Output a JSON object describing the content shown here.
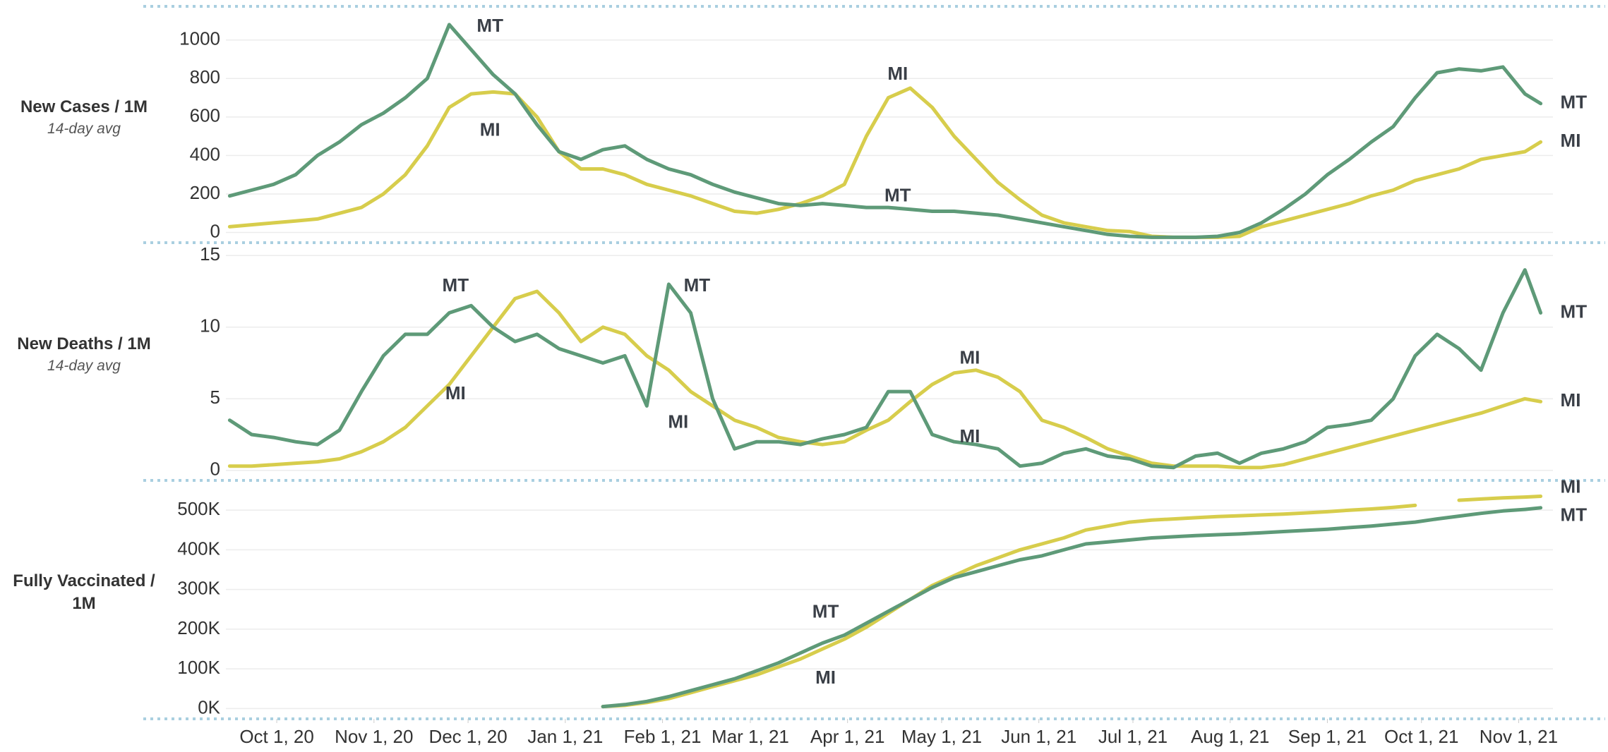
{
  "chart_data": [
    {
      "type": "line",
      "y_label": "New Cases / 1M",
      "y_sublabel": "14-day avg",
      "x": [
        "2020-09-16",
        "2020-09-23",
        "2020-09-30",
        "2020-10-07",
        "2020-10-14",
        "2020-10-21",
        "2020-10-28",
        "2020-11-04",
        "2020-11-11",
        "2020-11-18",
        "2020-11-25",
        "2020-12-02",
        "2020-12-09",
        "2020-12-16",
        "2020-12-23",
        "2020-12-30",
        "2021-01-06",
        "2021-01-13",
        "2021-01-20",
        "2021-01-27",
        "2021-02-03",
        "2021-02-10",
        "2021-02-17",
        "2021-02-24",
        "2021-03-03",
        "2021-03-10",
        "2021-03-17",
        "2021-03-24",
        "2021-03-31",
        "2021-04-07",
        "2021-04-14",
        "2021-04-21",
        "2021-04-28",
        "2021-05-05",
        "2021-05-12",
        "2021-05-19",
        "2021-05-26",
        "2021-06-02",
        "2021-06-09",
        "2021-06-16",
        "2021-06-23",
        "2021-06-30",
        "2021-07-07",
        "2021-07-14",
        "2021-07-21",
        "2021-07-28",
        "2021-08-04",
        "2021-08-11",
        "2021-08-18",
        "2021-08-25",
        "2021-09-01",
        "2021-09-08",
        "2021-09-15",
        "2021-09-22",
        "2021-09-29",
        "2021-10-06",
        "2021-10-13",
        "2021-10-20",
        "2021-10-27",
        "2021-11-03",
        "2021-11-08"
      ],
      "series": [
        {
          "name": "MI",
          "color": "#d7cd4c",
          "values": [
            30,
            40,
            50,
            60,
            70,
            100,
            130,
            200,
            300,
            450,
            650,
            720,
            730,
            720,
            600,
            420,
            330,
            330,
            300,
            250,
            220,
            190,
            150,
            110,
            100,
            120,
            150,
            190,
            250,
            500,
            700,
            750,
            650,
            500,
            380,
            260,
            170,
            90,
            50,
            30,
            10,
            5,
            -20,
            -25,
            -25,
            -25,
            -20,
            30,
            60,
            90,
            120,
            150,
            190,
            220,
            270,
            300,
            330,
            380,
            400,
            420,
            470
          ]
        },
        {
          "name": "MT",
          "color": "#5e9a78",
          "values": [
            190,
            220,
            250,
            300,
            400,
            470,
            560,
            620,
            700,
            800,
            1080,
            950,
            820,
            720,
            560,
            420,
            380,
            430,
            450,
            380,
            330,
            300,
            250,
            210,
            180,
            150,
            140,
            150,
            140,
            130,
            130,
            120,
            110,
            110,
            100,
            90,
            70,
            50,
            30,
            10,
            -10,
            -20,
            -25,
            -25,
            -25,
            -20,
            0,
            50,
            120,
            200,
            300,
            380,
            470,
            550,
            700,
            830,
            850,
            840,
            860,
            720,
            670
          ]
        }
      ],
      "xlim": [
        "2020-09-15",
        "2021-11-09"
      ],
      "ylim": [
        -53,
        1175
      ],
      "yticks": [
        0,
        200,
        400,
        600,
        800,
        1000
      ],
      "grid": true,
      "annotations": [
        {
          "text": "MT",
          "x": "2020-12-08",
          "y": 1069
        },
        {
          "text": "MI",
          "x": "2020-12-08",
          "y": 527
        },
        {
          "text": "MI",
          "x": "2021-04-17",
          "y": 819
        },
        {
          "text": "MT",
          "x": "2021-04-17",
          "y": 186
        }
      ]
    },
    {
      "type": "line",
      "y_label": "New Deaths / 1M",
      "y_sublabel": "14-day avg",
      "x": [
        "2020-09-16",
        "2020-09-23",
        "2020-09-30",
        "2020-10-07",
        "2020-10-14",
        "2020-10-21",
        "2020-10-28",
        "2020-11-04",
        "2020-11-11",
        "2020-11-18",
        "2020-11-25",
        "2020-12-02",
        "2020-12-09",
        "2020-12-16",
        "2020-12-23",
        "2020-12-30",
        "2021-01-06",
        "2021-01-13",
        "2021-01-20",
        "2021-01-27",
        "2021-02-03",
        "2021-02-10",
        "2021-02-17",
        "2021-02-24",
        "2021-03-03",
        "2021-03-10",
        "2021-03-17",
        "2021-03-24",
        "2021-03-31",
        "2021-04-07",
        "2021-04-14",
        "2021-04-21",
        "2021-04-28",
        "2021-05-05",
        "2021-05-12",
        "2021-05-19",
        "2021-05-26",
        "2021-06-02",
        "2021-06-09",
        "2021-06-16",
        "2021-06-23",
        "2021-06-30",
        "2021-07-07",
        "2021-07-14",
        "2021-07-21",
        "2021-07-28",
        "2021-08-04",
        "2021-08-11",
        "2021-08-18",
        "2021-08-25",
        "2021-09-01",
        "2021-09-08",
        "2021-09-15",
        "2021-09-22",
        "2021-09-29",
        "2021-10-06",
        "2021-10-13",
        "2021-10-20",
        "2021-10-27",
        "2021-11-03",
        "2021-11-08"
      ],
      "series": [
        {
          "name": "MI",
          "color": "#d7cd4c",
          "values": [
            0.3,
            0.3,
            0.4,
            0.5,
            0.6,
            0.8,
            1.3,
            2,
            3,
            4.5,
            6,
            8,
            10,
            12,
            12.5,
            11,
            9,
            10,
            9.5,
            8,
            7,
            5.5,
            4.5,
            3.5,
            3,
            2.3,
            2.0,
            1.8,
            2.0,
            2.8,
            3.5,
            4.8,
            6,
            6.8,
            7,
            6.5,
            5.5,
            3.5,
            3,
            2.3,
            1.5,
            1.0,
            0.5,
            0.3,
            0.3,
            0.3,
            0.2,
            0.2,
            0.4,
            0.8,
            1.2,
            1.6,
            2.0,
            2.4,
            2.8,
            3.2,
            3.6,
            4.0,
            4.5,
            5,
            4.8
          ]
        },
        {
          "name": "MT",
          "color": "#5e9a78",
          "values": [
            3.5,
            2.5,
            2.3,
            2.0,
            1.8,
            2.8,
            5.5,
            8,
            9.5,
            9.5,
            11,
            11.5,
            10,
            9,
            9.5,
            8.5,
            8,
            7.5,
            8,
            4.5,
            13,
            11,
            5,
            1.5,
            2,
            2,
            1.8,
            2.2,
            2.5,
            3,
            5.5,
            5.5,
            2.5,
            2,
            1.8,
            1.5,
            0.3,
            0.5,
            1.2,
            1.5,
            1.0,
            0.8,
            0.3,
            0.2,
            1.0,
            1.2,
            0.5,
            1.2,
            1.5,
            2.0,
            3,
            3.2,
            3.5,
            5,
            8,
            9.5,
            8.5,
            7,
            11,
            14,
            11
          ]
        }
      ],
      "xlim": [
        "2020-09-15",
        "2021-11-09"
      ],
      "ylim": [
        -0.7,
        15.9
      ],
      "yticks": [
        0,
        5,
        10,
        15
      ],
      "grid": true,
      "annotations": [
        {
          "text": "MT",
          "x": "2020-11-27",
          "y": 12.85
        },
        {
          "text": "MI",
          "x": "2020-11-27",
          "y": 5.3
        },
        {
          "text": "MI",
          "x": "2021-02-06",
          "y": 3.3
        },
        {
          "text": "MT",
          "x": "2021-02-12",
          "y": 12.85
        },
        {
          "text": "MI",
          "x": "2021-05-10",
          "y": 7.8
        },
        {
          "text": "MI",
          "x": "2021-05-10",
          "y": 2.3
        }
      ]
    },
    {
      "type": "line",
      "y_label": "Fully Vaccinated / 1M",
      "x": [
        "2020-09-16",
        "2020-09-23",
        "2020-09-30",
        "2020-10-07",
        "2020-10-14",
        "2020-10-21",
        "2020-10-28",
        "2020-11-04",
        "2020-11-11",
        "2020-11-18",
        "2020-11-25",
        "2020-12-02",
        "2020-12-09",
        "2020-12-16",
        "2020-12-23",
        "2020-12-30",
        "2021-01-06",
        "2021-01-13",
        "2021-01-20",
        "2021-01-27",
        "2021-02-03",
        "2021-02-10",
        "2021-02-17",
        "2021-02-24",
        "2021-03-03",
        "2021-03-10",
        "2021-03-17",
        "2021-03-24",
        "2021-03-31",
        "2021-04-07",
        "2021-04-14",
        "2021-04-21",
        "2021-04-28",
        "2021-05-05",
        "2021-05-12",
        "2021-05-19",
        "2021-05-26",
        "2021-06-02",
        "2021-06-09",
        "2021-06-16",
        "2021-06-23",
        "2021-06-30",
        "2021-07-07",
        "2021-07-14",
        "2021-07-21",
        "2021-07-28",
        "2021-08-04",
        "2021-08-11",
        "2021-08-18",
        "2021-08-25",
        "2021-09-01",
        "2021-09-08",
        "2021-09-15",
        "2021-09-22",
        "2021-09-29",
        "2021-10-06",
        "2021-10-13",
        "2021-10-20",
        "2021-10-27",
        "2021-11-03",
        "2021-11-08"
      ],
      "series": [
        {
          "name": "MI",
          "color": "#d7cd4c",
          "values": [
            null,
            null,
            null,
            null,
            null,
            null,
            null,
            null,
            null,
            null,
            null,
            null,
            null,
            null,
            null,
            null,
            null,
            5000,
            8000,
            15000,
            25000,
            40000,
            55000,
            70000,
            85000,
            105000,
            125000,
            150000,
            175000,
            205000,
            240000,
            275000,
            310000,
            335000,
            360000,
            380000,
            400000,
            415000,
            430000,
            450000,
            460000,
            470000,
            475000,
            478000,
            481000,
            484000,
            486000,
            488000,
            490000,
            493000,
            496000,
            500000,
            503000,
            507000,
            512000,
            null,
            525000,
            528000,
            531000,
            533000,
            535000
          ]
        },
        {
          "name": "MT",
          "color": "#5e9a78",
          "values": [
            null,
            null,
            null,
            null,
            null,
            null,
            null,
            null,
            null,
            null,
            null,
            null,
            null,
            null,
            null,
            null,
            null,
            5000,
            10000,
            18000,
            30000,
            45000,
            60000,
            75000,
            95000,
            115000,
            140000,
            165000,
            185000,
            215000,
            245000,
            275000,
            305000,
            330000,
            345000,
            360000,
            375000,
            385000,
            400000,
            415000,
            420000,
            425000,
            430000,
            433000,
            436000,
            438000,
            440000,
            443000,
            446000,
            449000,
            452000,
            456000,
            460000,
            465000,
            470000,
            478000,
            485000,
            492000,
            498000,
            502000,
            506000
          ]
        }
      ],
      "xlim": [
        "2020-09-15",
        "2021-11-09"
      ],
      "ylim": [
        -26000,
        575000
      ],
      "yticks": [
        {
          "value": 0,
          "label": "0K"
        },
        {
          "value": 100000,
          "label": "100K"
        },
        {
          "value": 200000,
          "label": "200K"
        },
        {
          "value": 300000,
          "label": "300K"
        },
        {
          "value": 400000,
          "label": "400K"
        },
        {
          "value": 500000,
          "label": "500K"
        }
      ],
      "xticks": [
        {
          "value": "2020-10-01",
          "label": "Oct 1, 20"
        },
        {
          "value": "2020-11-01",
          "label": "Nov 1, 20"
        },
        {
          "value": "2020-12-01",
          "label": "Dec 1, 20"
        },
        {
          "value": "2021-01-01",
          "label": "Jan 1, 21"
        },
        {
          "value": "2021-02-01",
          "label": "Feb 1, 21"
        },
        {
          "value": "2021-03-01",
          "label": "Mar 1, 21"
        },
        {
          "value": "2021-04-01",
          "label": "Apr 1, 21"
        },
        {
          "value": "2021-05-01",
          "label": "May 1, 21"
        },
        {
          "value": "2021-06-01",
          "label": "Jun 1, 21"
        },
        {
          "value": "2021-07-01",
          "label": "Jul 1, 21"
        },
        {
          "value": "2021-08-01",
          "label": "Aug 1, 21"
        },
        {
          "value": "2021-09-01",
          "label": "Sep 1, 21"
        },
        {
          "value": "2021-10-01",
          "label": "Oct 1, 21"
        },
        {
          "value": "2021-11-01",
          "label": "Nov 1, 21"
        }
      ],
      "grid": true,
      "annotations": [
        {
          "text": "MT",
          "x": "2021-03-25",
          "y": 241000
        },
        {
          "text": "MI",
          "x": "2021-03-25",
          "y": 75000
        }
      ]
    }
  ]
}
